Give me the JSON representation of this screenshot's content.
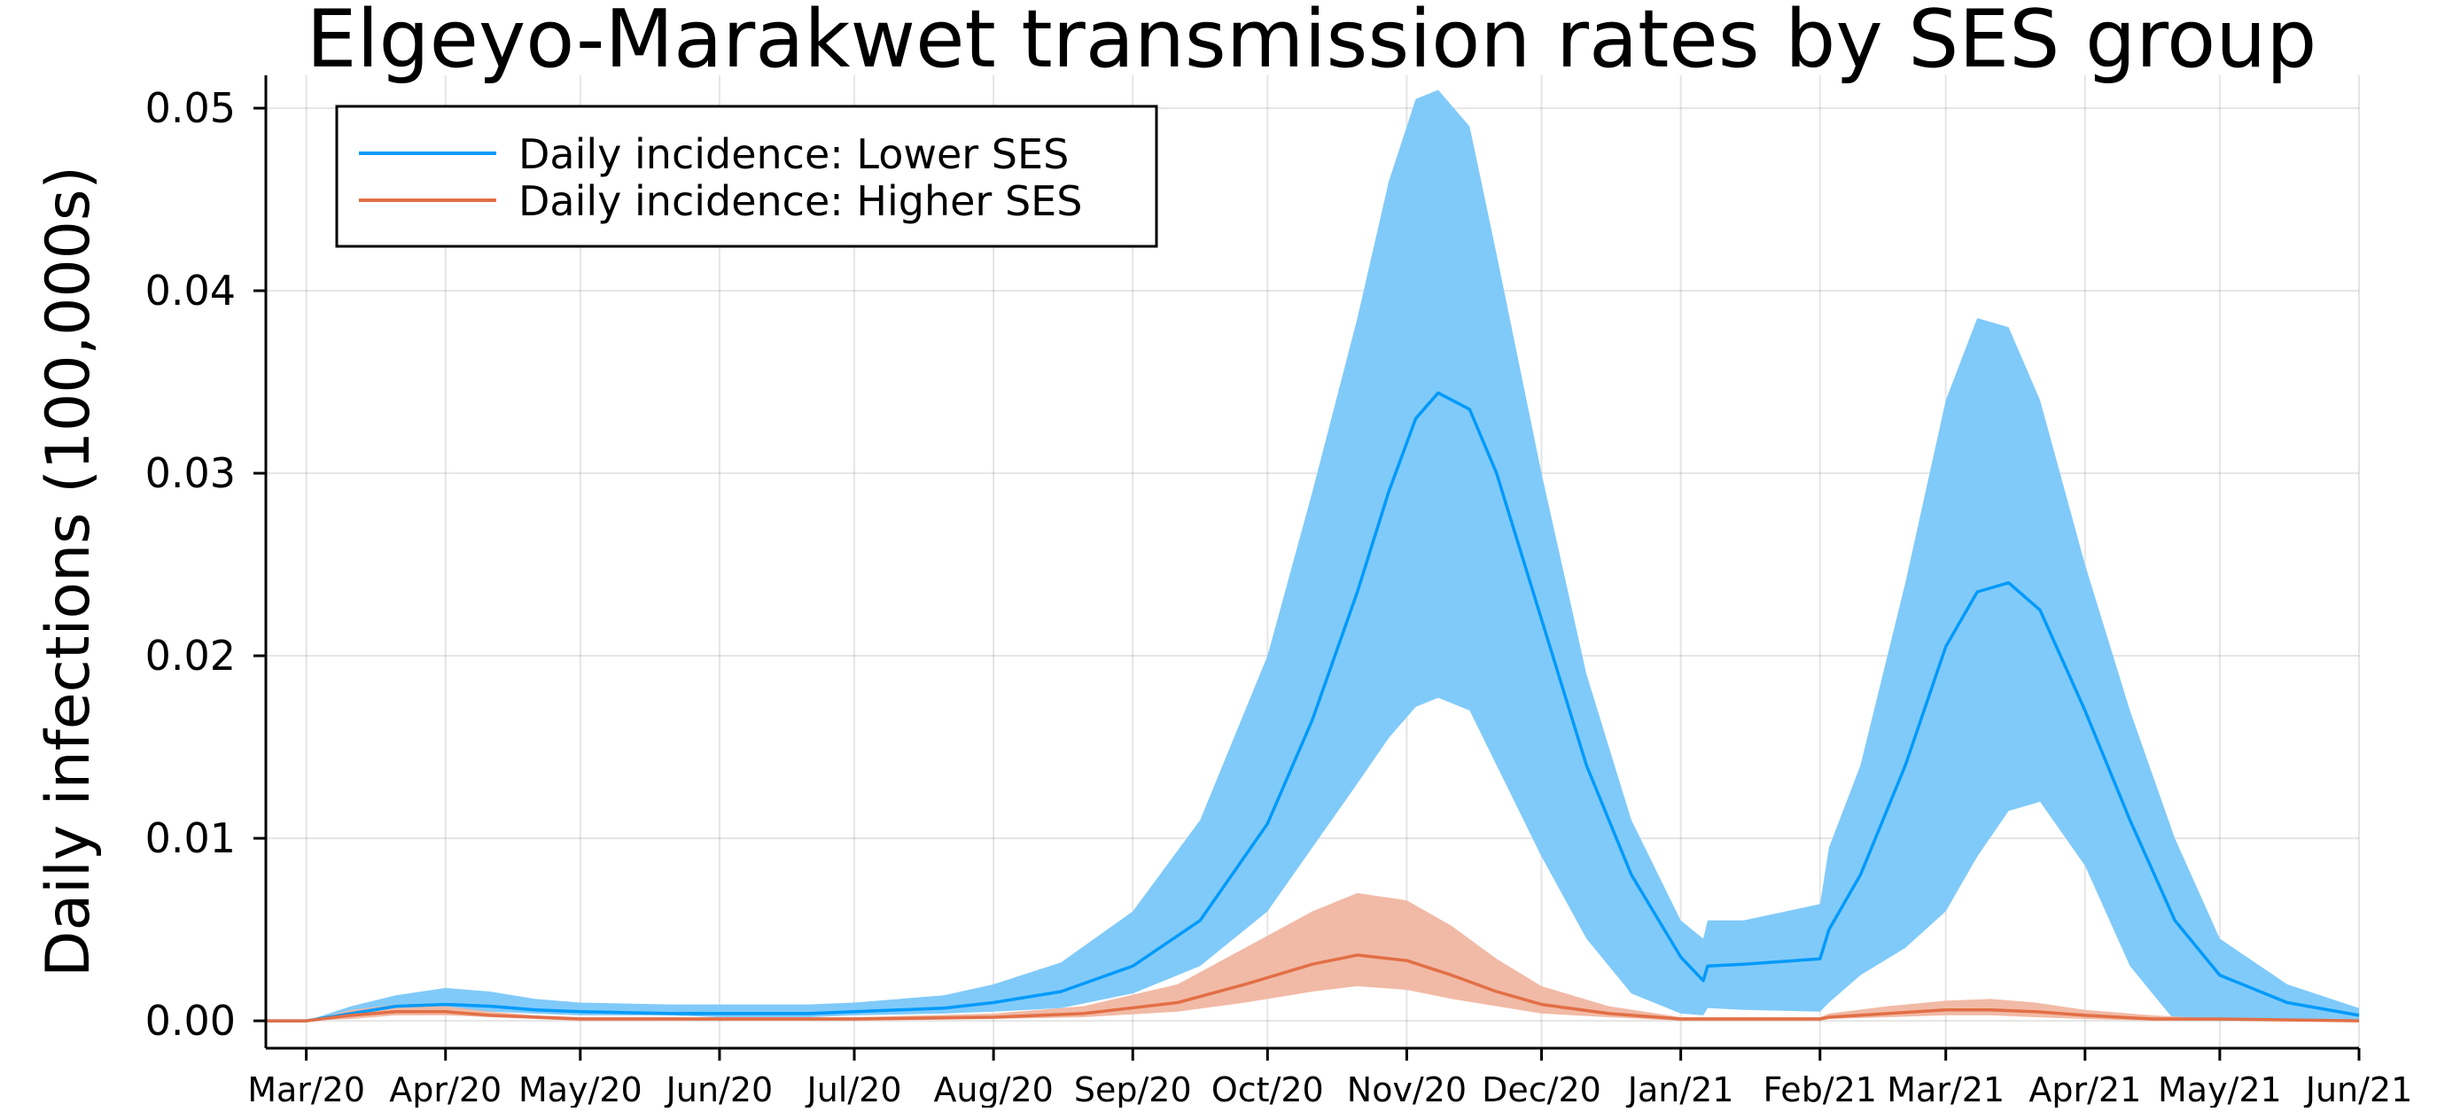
{
  "chart_data": {
    "type": "line",
    "title": "Elgeyo-Marakwet transmission rates by SES group",
    "xlabel": "",
    "ylabel": "Daily infections (100,000s)",
    "x_ticks": [
      "Mar/20",
      "Apr/20",
      "May/20",
      "Jun/20",
      "Jul/20",
      "Aug/20",
      "Sep/20",
      "Oct/20",
      "Nov/20",
      "Dec/20",
      "Jan/21",
      "Feb/21",
      "Mar/21",
      "Apr/21",
      "May/21",
      "Jun/21"
    ],
    "y_ticks": [
      "0.00",
      "0.01",
      "0.02",
      "0.03",
      "0.04",
      "0.05"
    ],
    "xlim": [
      "2020-02-21",
      "2021-06-01"
    ],
    "ylim": [
      -0.0015,
      0.0518
    ],
    "grid": true,
    "legend_position": "top-left",
    "colors": {
      "lower": "#009AFA",
      "lower_band": "#80CAF9",
      "higher": "#E26F46",
      "higher_band": "#F0B6A1"
    },
    "series": [
      {
        "name": "Daily incidence: Lower SES",
        "color": "#009AFA",
        "band_color": "#80CAF9",
        "x": [
          "2020-02-21",
          "2020-03-01",
          "2020-03-11",
          "2020-03-21",
          "2020-04-01",
          "2020-04-11",
          "2020-04-21",
          "2020-05-01",
          "2020-05-21",
          "2020-06-01",
          "2020-06-21",
          "2020-07-01",
          "2020-07-21",
          "2020-08-01",
          "2020-08-16",
          "2020-09-01",
          "2020-09-16",
          "2020-10-01",
          "2020-10-11",
          "2020-10-21",
          "2020-10-28",
          "2020-11-03",
          "2020-11-08",
          "2020-11-15",
          "2020-11-21",
          "2020-12-01",
          "2020-12-11",
          "2020-12-21",
          "2021-01-01",
          "2021-01-06",
          "2021-01-07",
          "2021-01-15",
          "2021-02-01",
          "2021-02-03",
          "2021-02-10",
          "2021-02-20",
          "2021-03-01",
          "2021-03-08",
          "2021-03-15",
          "2021-03-22",
          "2021-04-01",
          "2021-04-11",
          "2021-04-21",
          "2021-05-01",
          "2021-05-16",
          "2021-06-01"
        ],
        "values": [
          0.0,
          0.0,
          0.0004,
          0.0008,
          0.0009,
          0.0008,
          0.0006,
          0.0005,
          0.0004,
          0.0004,
          0.0004,
          0.0005,
          0.0007,
          0.001,
          0.0016,
          0.003,
          0.0055,
          0.0108,
          0.0165,
          0.0235,
          0.029,
          0.033,
          0.0344,
          0.0335,
          0.03,
          0.022,
          0.014,
          0.008,
          0.0035,
          0.0022,
          0.003,
          0.0031,
          0.0034,
          0.005,
          0.008,
          0.014,
          0.0205,
          0.0235,
          0.024,
          0.0225,
          0.017,
          0.011,
          0.0055,
          0.0025,
          0.001,
          0.0003
        ],
        "lower": [
          0.0,
          0.0,
          0.0002,
          0.0005,
          0.0006,
          0.0005,
          0.0004,
          0.0003,
          0.0003,
          0.0002,
          0.0002,
          0.0003,
          0.0004,
          0.0005,
          0.0007,
          0.0015,
          0.003,
          0.006,
          0.0095,
          0.013,
          0.0155,
          0.0172,
          0.0177,
          0.017,
          0.014,
          0.009,
          0.0045,
          0.0015,
          0.0004,
          0.0003,
          0.0007,
          0.0006,
          0.0005,
          0.001,
          0.0025,
          0.004,
          0.006,
          0.009,
          0.0115,
          0.012,
          0.0085,
          0.003,
          0.0,
          0.0,
          0.0,
          0.0
        ],
        "upper": [
          0.0,
          0.0,
          0.0008,
          0.0014,
          0.0018,
          0.0016,
          0.0012,
          0.001,
          0.0009,
          0.0009,
          0.0009,
          0.001,
          0.0014,
          0.002,
          0.0032,
          0.006,
          0.011,
          0.02,
          0.029,
          0.0385,
          0.046,
          0.0505,
          0.051,
          0.049,
          0.042,
          0.03,
          0.019,
          0.011,
          0.0055,
          0.0045,
          0.0055,
          0.0055,
          0.0064,
          0.0095,
          0.014,
          0.024,
          0.034,
          0.0385,
          0.038,
          0.034,
          0.025,
          0.017,
          0.01,
          0.0045,
          0.002,
          0.0007
        ]
      },
      {
        "name": "Daily incidence: Higher SES",
        "color": "#E26F46",
        "band_color": "#F0B6A1",
        "x": [
          "2020-02-21",
          "2020-03-01",
          "2020-03-11",
          "2020-03-21",
          "2020-04-01",
          "2020-04-11",
          "2020-04-21",
          "2020-05-01",
          "2020-06-01",
          "2020-07-01",
          "2020-08-01",
          "2020-08-21",
          "2020-09-11",
          "2020-09-26",
          "2020-10-11",
          "2020-10-21",
          "2020-11-01",
          "2020-11-11",
          "2020-11-21",
          "2020-12-01",
          "2020-12-16",
          "2021-01-01",
          "2021-02-01",
          "2021-02-03",
          "2021-02-16",
          "2021-03-01",
          "2021-03-11",
          "2021-03-21",
          "2021-04-01",
          "2021-04-16",
          "2021-05-01",
          "2021-06-01"
        ],
        "values": [
          0.0,
          0.0,
          0.0003,
          0.0005,
          0.0005,
          0.0003,
          0.0002,
          0.0001,
          0.0001,
          0.0001,
          0.0002,
          0.0004,
          0.001,
          0.002,
          0.0031,
          0.0036,
          0.0033,
          0.0025,
          0.0016,
          0.0009,
          0.0004,
          0.0001,
          0.0001,
          0.0002,
          0.0004,
          0.0006,
          0.0006,
          0.0005,
          0.0003,
          0.0001,
          0.0001,
          0.0
        ],
        "lower": [
          0.0,
          0.0,
          0.0001,
          0.0003,
          0.0003,
          0.0002,
          0.0001,
          0.0,
          0.0,
          0.0,
          0.0001,
          0.0002,
          0.0005,
          0.001,
          0.0016,
          0.0019,
          0.0017,
          0.0012,
          0.0008,
          0.0004,
          0.0002,
          0.0,
          0.0,
          0.0001,
          0.0002,
          0.0003,
          0.0003,
          0.0002,
          0.0001,
          0.0,
          0.0,
          0.0
        ],
        "upper": [
          0.0,
          0.0,
          0.0006,
          0.0009,
          0.0008,
          0.0005,
          0.0003,
          0.0002,
          0.0002,
          0.0002,
          0.0004,
          0.0008,
          0.002,
          0.004,
          0.006,
          0.007,
          0.0066,
          0.0052,
          0.0034,
          0.0019,
          0.0008,
          0.0002,
          0.0002,
          0.0004,
          0.0008,
          0.0011,
          0.0012,
          0.001,
          0.0006,
          0.0003,
          0.0001,
          0.0
        ]
      }
    ]
  }
}
